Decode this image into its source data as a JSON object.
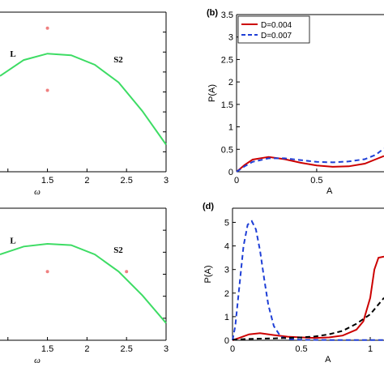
{
  "chart_data": [
    {
      "id": "top-left",
      "type": "line",
      "xlabel": "ω",
      "xticks": [
        "1.5",
        "2",
        "2.5",
        "3"
      ],
      "xlim": [
        0.9,
        3.0
      ],
      "ylim": [
        0,
        1
      ],
      "region_label": "S2",
      "curve_label": "L",
      "colors": {
        "curve": "#3ddc64",
        "points": "#f08080"
      },
      "series": [
        {
          "x": [
            0.9,
            1.2,
            1.5,
            1.8,
            2.1,
            2.4,
            2.7,
            3.0
          ],
          "y": [
            0.6,
            0.7,
            0.74,
            0.73,
            0.67,
            0.56,
            0.38,
            0.17
          ]
        }
      ],
      "points": [
        {
          "x": 1.5,
          "y": 0.9
        },
        {
          "x": 1.5,
          "y": 0.51
        }
      ]
    },
    {
      "id": "top-right",
      "type": "line",
      "panel_label": "(b)",
      "xlabel": "A",
      "ylabel": "P(A)",
      "xticks": [
        "0",
        "0.5"
      ],
      "yticks": [
        "0",
        "0.5",
        "1",
        "1.5",
        "2",
        "2.5",
        "3",
        "3.5"
      ],
      "xlim": [
        0,
        0.92
      ],
      "ylim": [
        0,
        3.5
      ],
      "legend": [
        "D=0.004",
        "D=0.007"
      ],
      "series": [
        {
          "name": "D=0.004",
          "color": "#cc0000",
          "dash": "solid",
          "x": [
            0,
            0.05,
            0.1,
            0.2,
            0.3,
            0.4,
            0.5,
            0.6,
            0.7,
            0.8,
            0.87,
            0.92
          ],
          "y": [
            0,
            0.15,
            0.27,
            0.33,
            0.28,
            0.2,
            0.14,
            0.11,
            0.12,
            0.18,
            0.28,
            0.35
          ]
        },
        {
          "name": "D=0.007",
          "color": "#1f3fd6",
          "dash": "dashed",
          "x": [
            0,
            0.05,
            0.1,
            0.2,
            0.3,
            0.4,
            0.5,
            0.6,
            0.7,
            0.8,
            0.87,
            0.92
          ],
          "y": [
            0,
            0.12,
            0.22,
            0.3,
            0.3,
            0.26,
            0.22,
            0.21,
            0.23,
            0.28,
            0.38,
            0.52
          ]
        }
      ]
    },
    {
      "id": "bottom-left",
      "type": "line",
      "xlabel": "ω",
      "xticks": [
        "1.5",
        "2",
        "2.5",
        "3"
      ],
      "xlim": [
        0.9,
        3.0
      ],
      "ylim": [
        0,
        1
      ],
      "region_label": "S2",
      "curve_label": "L",
      "colors": {
        "curve": "#3ddc64",
        "points": "#f08080"
      },
      "series": [
        {
          "x": [
            0.9,
            1.2,
            1.5,
            1.8,
            2.1,
            2.4,
            2.7,
            3.0
          ],
          "y": [
            0.65,
            0.71,
            0.73,
            0.72,
            0.65,
            0.52,
            0.34,
            0.13
          ]
        }
      ],
      "points": [
        {
          "x": 1.5,
          "y": 0.52
        },
        {
          "x": 2.5,
          "y": 0.52
        }
      ]
    },
    {
      "id": "bottom-right",
      "type": "line",
      "panel_label": "(d)",
      "xlabel": "A",
      "ylabel": "P(A)",
      "xticks": [
        "0",
        "0.5",
        "1"
      ],
      "yticks": [
        "0",
        "1",
        "2",
        "3",
        "4",
        "5"
      ],
      "xlim": [
        0,
        1.1
      ],
      "ylim": [
        0,
        5.6
      ],
      "series": [
        {
          "color": "#cc0000",
          "dash": "solid",
          "x": [
            0,
            0.05,
            0.12,
            0.2,
            0.3,
            0.4,
            0.5,
            0.6,
            0.7,
            0.8,
            0.9,
            0.95,
            1.0,
            1.03,
            1.06,
            1.1
          ],
          "y": [
            0,
            0.1,
            0.25,
            0.3,
            0.22,
            0.15,
            0.12,
            0.1,
            0.12,
            0.2,
            0.45,
            0.8,
            1.8,
            3.0,
            3.5,
            3.55
          ]
        },
        {
          "color": "#1f3fd6",
          "dash": "dashed",
          "x": [
            0,
            0.02,
            0.05,
            0.08,
            0.11,
            0.14,
            0.17,
            0.2,
            0.23,
            0.26,
            0.3,
            0.35,
            0.4,
            0.5,
            0.7,
            0.9,
            1.1
          ],
          "y": [
            0,
            0.6,
            2.3,
            4.0,
            4.9,
            5.05,
            4.7,
            3.8,
            2.6,
            1.5,
            0.6,
            0.15,
            0.05,
            0.02,
            0.01,
            0.01,
            0.01
          ]
        },
        {
          "color": "#000000",
          "dash": "dashed",
          "x": [
            0,
            0.1,
            0.2,
            0.3,
            0.4,
            0.5,
            0.6,
            0.7,
            0.8,
            0.9,
            1.0,
            1.05,
            1.1
          ],
          "y": [
            0.02,
            0.05,
            0.07,
            0.08,
            0.1,
            0.12,
            0.16,
            0.25,
            0.4,
            0.7,
            1.1,
            1.45,
            1.8
          ]
        }
      ]
    }
  ]
}
